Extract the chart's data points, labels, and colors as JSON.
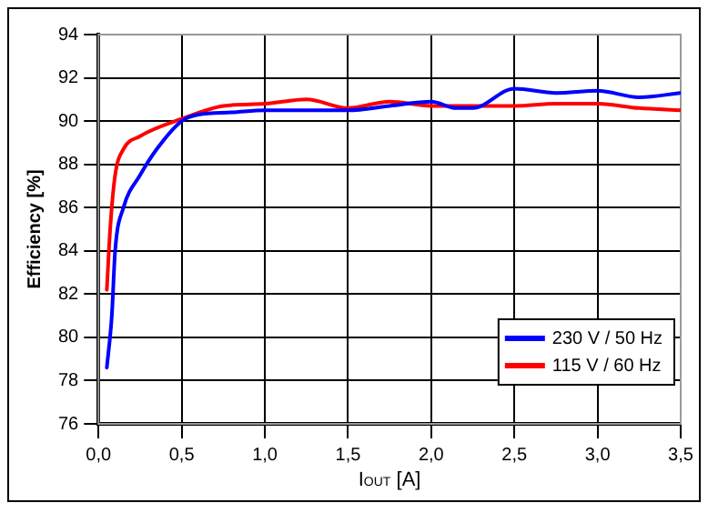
{
  "chart_data": {
    "type": "line",
    "ylabel": "Efficiency [%]",
    "xlabel": "I$_{OUT}$ [A]",
    "xlim": [
      0,
      3.5
    ],
    "xticks": [
      {
        "value": 0,
        "label": "0,0"
      },
      {
        "value": 0.5,
        "label": "0,5"
      },
      {
        "value": 1,
        "label": "1,0"
      },
      {
        "value": 1.5,
        "label": "1,5"
      },
      {
        "value": 2,
        "label": "2,0"
      },
      {
        "value": 2.5,
        "label": "2,5"
      },
      {
        "value": 3,
        "label": "3,0"
      },
      {
        "value": 3.5,
        "label": "3,5"
      }
    ],
    "ylim": [
      76,
      94
    ],
    "yticks": [
      76,
      78,
      80,
      82,
      84,
      86,
      88,
      90,
      92,
      94
    ],
    "grid": true,
    "legend": "bottom right",
    "marker": "none",
    "line_style": "solid",
    "series": [
      {
        "name": "230 V / 50 Hz",
        "color": "#0000ff",
        "x": [
          0.05,
          0.08,
          0.1,
          0.15,
          0.25,
          0.35,
          0.5,
          0.6,
          0.8,
          1.0,
          1.25,
          1.5,
          1.75,
          2.0,
          2.15,
          2.25,
          2.5,
          2.75,
          3.0,
          3.25,
          3.5
        ],
        "values": [
          78.6,
          81,
          84,
          86,
          87.5,
          88.7,
          90.0,
          90.3,
          90.4,
          90.5,
          90.5,
          90.5,
          90.7,
          90.9,
          90.6,
          90.6,
          91.5,
          91.3,
          91.4,
          91.1,
          91.3
        ]
      },
      {
        "name": "115 V / 60 Hz",
        "color": "#ff0000",
        "x": [
          0.05,
          0.07,
          0.1,
          0.15,
          0.25,
          0.5,
          0.75,
          1.0,
          1.25,
          1.5,
          1.75,
          2.0,
          2.25,
          2.5,
          2.75,
          3.0,
          3.25,
          3.5
        ],
        "values": [
          82.2,
          85,
          87.5,
          88.7,
          89.3,
          90.1,
          90.7,
          90.8,
          91.0,
          90.6,
          90.9,
          90.7,
          90.7,
          90.7,
          90.8,
          90.8,
          90.6,
          90.5
        ]
      }
    ]
  }
}
